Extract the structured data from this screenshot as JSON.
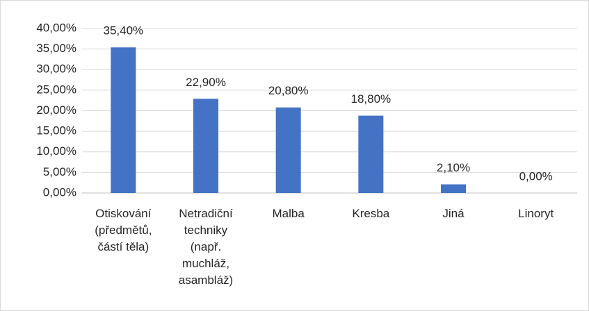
{
  "chart_data": {
    "type": "bar",
    "categories": [
      "Otiskování (předmětů, částí těla)",
      "Netradiční techniky (např. muchláž, asambláž)",
      "Malba",
      "Kresba",
      "Jiná",
      "Linoryt"
    ],
    "values": [
      35.4,
      22.9,
      20.8,
      18.8,
      2.1,
      0
    ],
    "value_labels": [
      "35,40%",
      "22,90%",
      "20,80%",
      "18,80%",
      "2,10%",
      "0,00%"
    ],
    "color": "#4472c4",
    "ylim": [
      0,
      40
    ],
    "yticks": [
      {
        "value": 0,
        "label": "0,00%"
      },
      {
        "value": 5,
        "label": "5,00%"
      },
      {
        "value": 10,
        "label": "10,00%"
      },
      {
        "value": 15,
        "label": "15,00%"
      },
      {
        "value": 20,
        "label": "20,00%"
      },
      {
        "value": 25,
        "label": "25,00%"
      },
      {
        "value": 30,
        "label": "30,00%"
      },
      {
        "value": 35,
        "label": "35,00%"
      },
      {
        "value": 40,
        "label": "40,00%"
      }
    ],
    "grid": true
  }
}
